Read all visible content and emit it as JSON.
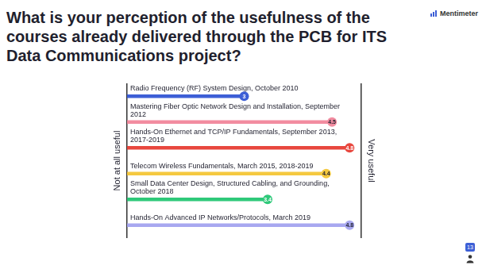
{
  "chart_data": {
    "type": "bar",
    "title": "What is your perception of the usefulness of the courses already delivered through the PCB for ITS Data Communications project?",
    "brand": "Mentimeter",
    "low_label": "Not at all useful",
    "high_label": "Very useful",
    "respondents": 13,
    "categories": [
      "Radio Frequency (RF) System Design, October 2010",
      "Mastering Fiber Optic Network Design and Installation, September 2012",
      "Hands-On Ethernet and TCP/IP Fundamentals, September 2013, 2017-2019",
      "Telecom Wireless Fundamentals, March 2015, 2018-2019",
      "Small Data Center Design, Structured Cabling, and Grounding, October 2018",
      "Hands-On Advanced IP Networks/Protocols, March 2019"
    ],
    "values": [
      3,
      4.5,
      4.8,
      4.4,
      3.4,
      4.8
    ],
    "colors": [
      "#3d5fd6",
      "#f28ca0",
      "#e8473e",
      "#f5c940",
      "#2fc97a",
      "#a8a8f0"
    ],
    "orientation": "horizontal",
    "xlim": [
      1,
      5
    ],
    "xticks": [
      1,
      5
    ],
    "data_labels": true,
    "tick_labels": false,
    "grid": false
  }
}
